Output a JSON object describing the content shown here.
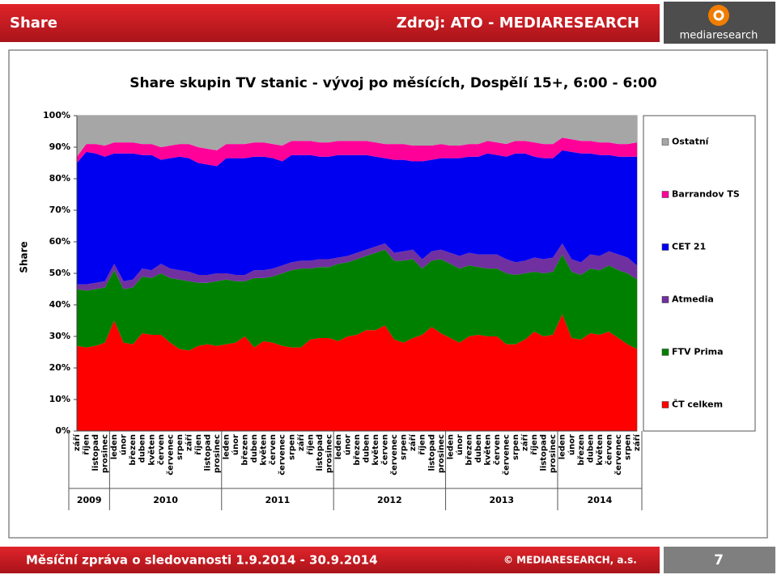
{
  "slide": {
    "header_left": "Share",
    "header_right": "Zdroj: ATO - MEDIARESEARCH",
    "logo": "mediaresearch",
    "footer_left": "Měsíční zpráva o sledovanosti 1.9.2014 - 30.9.2014",
    "footer_right": "© MEDIARESEARCH, a.s.",
    "page": "7"
  },
  "chart_data": {
    "type": "stacked_area",
    "title": "Share skupin TV stanic - vývoj po měsících, Dospělí 15+, 6:00 - 6:00",
    "y_label": "Share",
    "groups": [
      {
        "label": "2009",
        "categories": [
          "září",
          "říjen",
          "listopad",
          "prosinec"
        ]
      },
      {
        "label": "2010",
        "categories": [
          "leden",
          "únor",
          "březen",
          "duben",
          "květen",
          "červen",
          "červenec",
          "srpen",
          "září",
          "říjen",
          "listopad",
          "prosinec"
        ]
      },
      {
        "label": "2011",
        "categories": [
          "leden",
          "únor",
          "březen",
          "duben",
          "květen",
          "červen",
          "červenec",
          "srpen",
          "září",
          "říjen",
          "listopad",
          "prosinec"
        ]
      },
      {
        "label": "2012",
        "categories": [
          "leden",
          "únor",
          "březen",
          "duben",
          "květen",
          "červen",
          "červenec",
          "srpen",
          "září",
          "říjen",
          "listopad",
          "prosinec"
        ]
      },
      {
        "label": "2013",
        "categories": [
          "leden",
          "únor",
          "březen",
          "duben",
          "květen",
          "červen",
          "červenec",
          "srpen",
          "září",
          "říjen",
          "listopad",
          "prosinec"
        ]
      },
      {
        "label": "2014",
        "categories": [
          "leden",
          "únor",
          "březen",
          "duben",
          "květen",
          "červen",
          "červenec",
          "srpen",
          "září"
        ]
      }
    ],
    "series": [
      {
        "name": "ČT celkem",
        "color": "#ff0000",
        "values": [
          27,
          26.5,
          27,
          28,
          35,
          28,
          27.5,
          31,
          30.5,
          30.5,
          28,
          26,
          25.5,
          27,
          27.5,
          27,
          27.5,
          28,
          30,
          26.5,
          28.5,
          28,
          27,
          26.5,
          26.5,
          29,
          29.5,
          29.5,
          28.5,
          30,
          30.5,
          32,
          32,
          33.5,
          29,
          28,
          29.5,
          30.5,
          33,
          31,
          29.5,
          28,
          30,
          30.5,
          30,
          30,
          27.5,
          27.5,
          29,
          31.5,
          30,
          30.5,
          37,
          29.5,
          29,
          31,
          30.5,
          31.5,
          29.5,
          27.5,
          26
        ]
      },
      {
        "name": "FTV Prima",
        "color": "#008000",
        "values": [
          18,
          18,
          18,
          17.5,
          16,
          17,
          18,
          18,
          18,
          19.5,
          20.5,
          22,
          22,
          20,
          19.5,
          20.5,
          20.5,
          19.5,
          17.5,
          22,
          20,
          21,
          23,
          24.5,
          25,
          22.5,
          22.5,
          22.5,
          24.5,
          23.5,
          24,
          23.5,
          24.5,
          24,
          25,
          26,
          25,
          21,
          21,
          23.5,
          23.5,
          23.5,
          22.5,
          21.5,
          21.5,
          21.5,
          22.5,
          22,
          21,
          19,
          20,
          20,
          19,
          21,
          20.5,
          20.5,
          20.5,
          21,
          21.5,
          22.5,
          22
        ]
      },
      {
        "name": "Atmedia",
        "color": "#7030a0",
        "values": [
          1.5,
          2,
          2,
          2,
          2,
          2.5,
          2.5,
          2.5,
          2.5,
          3,
          3,
          3,
          3,
          2.5,
          2.5,
          2.5,
          2,
          2,
          2,
          2.5,
          2.5,
          2.5,
          2.5,
          2.5,
          2.5,
          2.5,
          2.5,
          2.5,
          2,
          2,
          2,
          2,
          2,
          2,
          2.5,
          3,
          3,
          3,
          3,
          3,
          3.5,
          4,
          4,
          4,
          4.5,
          4.5,
          4.5,
          4,
          4,
          4.5,
          4.5,
          4.5,
          3.5,
          4,
          4,
          4.5,
          4.5,
          4.5,
          5,
          5,
          4.5
        ]
      },
      {
        "name": "CET 21",
        "color": "#0000f0",
        "values": [
          38.5,
          42,
          41,
          39.5,
          35,
          40.5,
          40,
          36,
          36.5,
          33,
          35,
          36,
          36,
          35.5,
          35,
          34,
          36.5,
          37,
          37,
          36,
          36,
          35,
          33,
          34,
          33.5,
          33.5,
          32.5,
          32.5,
          32.5,
          32,
          31,
          30,
          28.5,
          27,
          29.5,
          29,
          28,
          31,
          29,
          29,
          30,
          31,
          30.5,
          31,
          32,
          31.5,
          32.5,
          34.5,
          34,
          32,
          32,
          31.5,
          29.5,
          34,
          34.5,
          32,
          32,
          30.5,
          31,
          32,
          34.5
        ]
      },
      {
        "name": "Barrandov TS",
        "color": "#ff0099",
        "values": [
          2,
          2.5,
          3,
          3.5,
          3.5,
          3.5,
          3.5,
          3.5,
          3.5,
          4,
          4,
          4,
          4.5,
          5,
          5,
          5,
          4.5,
          4.5,
          4.5,
          4.5,
          4.5,
          4.5,
          5,
          4.5,
          4.5,
          4.5,
          4.5,
          4.5,
          4.5,
          4.5,
          4.5,
          4.5,
          4.5,
          4.5,
          5,
          5,
          5,
          5,
          4.5,
          4.5,
          4,
          4,
          4,
          4,
          4,
          4,
          4,
          4,
          4,
          4.5,
          4.5,
          4.5,
          4,
          4,
          4,
          4,
          4,
          4,
          4,
          4,
          4.5
        ]
      },
      {
        "name": "Ostatní",
        "color": "#a6a6a6",
        "values": [
          13,
          9,
          9,
          9.5,
          8.5,
          8.5,
          8.5,
          9,
          9,
          10,
          9.5,
          9,
          9,
          10,
          10.5,
          11,
          9,
          9,
          9,
          8.5,
          8.5,
          9,
          9.5,
          8,
          8,
          8,
          8.5,
          8.5,
          8,
          8,
          8,
          8,
          8.5,
          9,
          9,
          9,
          9.5,
          9.5,
          9.5,
          9,
          9.5,
          9.5,
          9,
          9,
          8,
          8.5,
          9,
          8,
          8,
          8.5,
          9,
          9,
          7,
          7.5,
          8,
          8,
          8.5,
          8.5,
          9,
          9,
          8.5
        ]
      }
    ],
    "ylim": [
      0,
      100
    ],
    "yticks": [
      {
        "value": 0,
        "label": "0%"
      },
      {
        "value": 10,
        "label": "10%"
      },
      {
        "value": 20,
        "label": "20%"
      },
      {
        "value": 30,
        "label": "30%"
      },
      {
        "value": 40,
        "label": "40%"
      },
      {
        "value": 50,
        "label": "50%"
      },
      {
        "value": 60,
        "label": "60%"
      },
      {
        "value": 70,
        "label": "70%"
      },
      {
        "value": 80,
        "label": "80%"
      },
      {
        "value": 90,
        "label": "90%"
      },
      {
        "value": 100,
        "label": "100%"
      }
    ],
    "legend": "right"
  }
}
